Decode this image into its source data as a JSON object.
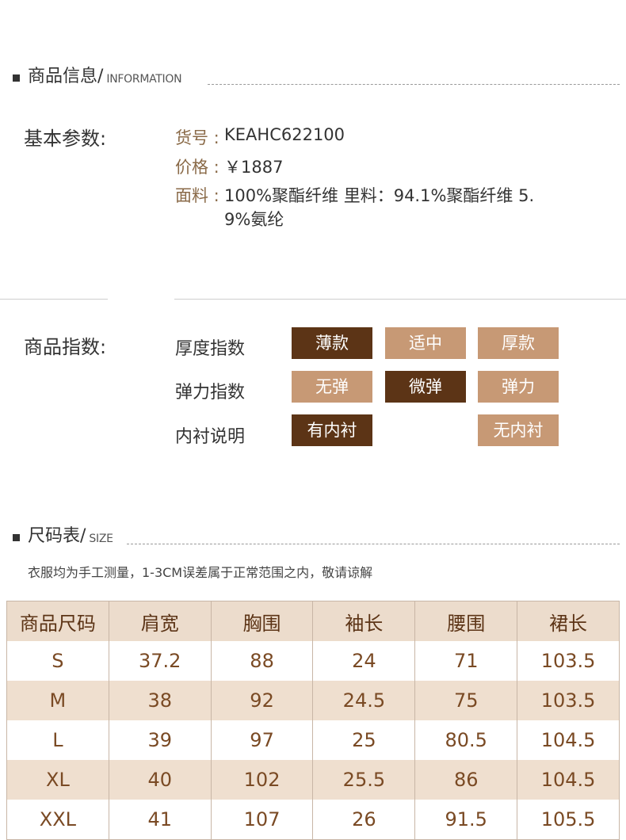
{
  "info_section": {
    "title_cn": "商品信息/",
    "title_en": "INFORMATION"
  },
  "basic": {
    "label": "基本参数:",
    "sku_key": "货号 :",
    "sku_val": "KEAHC622100",
    "price_key": "价格 :",
    "price_val": "￥1887",
    "fabric_key": "面料 :",
    "fabric_line1": "100%聚酯纤维 里料：94.1%聚酯纤维 5.",
    "fabric_line2": "9%氨纶"
  },
  "index": {
    "label": "商品指数:",
    "rows": [
      {
        "label": "厚度指数",
        "options": [
          "薄款",
          "适中",
          "厚款"
        ],
        "selected": 0
      },
      {
        "label": "弹力指数",
        "options": [
          "无弹",
          "微弹",
          "弹力"
        ],
        "selected": 1
      },
      {
        "label": "内衬说明",
        "options": [
          "有内衬",
          "无内衬"
        ],
        "selected": 0
      }
    ],
    "active_color": "#5c3416",
    "inactive_color": "#c79975"
  },
  "size_section": {
    "title_cn": "尺码表/",
    "title_en": "SIZE",
    "note": "衣服均为手工测量，1-3CM误差属于正常范围之内，敬请谅解"
  },
  "size_table": {
    "headers": [
      "商品尺码",
      "肩宽",
      "胸围",
      "袖长",
      "腰围",
      "裙长"
    ],
    "rows": [
      [
        "S",
        "37.2",
        "88",
        "24",
        "71",
        "103.5"
      ],
      [
        "M",
        "38",
        "92",
        "24.5",
        "75",
        "103.5"
      ],
      [
        "L",
        "39",
        "97",
        "25",
        "80.5",
        "104.5"
      ],
      [
        "XL",
        "40",
        "102",
        "25.5",
        "86",
        "104.5"
      ],
      [
        "XXL",
        "41",
        "107",
        "26",
        "91.5",
        "105.5"
      ]
    ]
  }
}
